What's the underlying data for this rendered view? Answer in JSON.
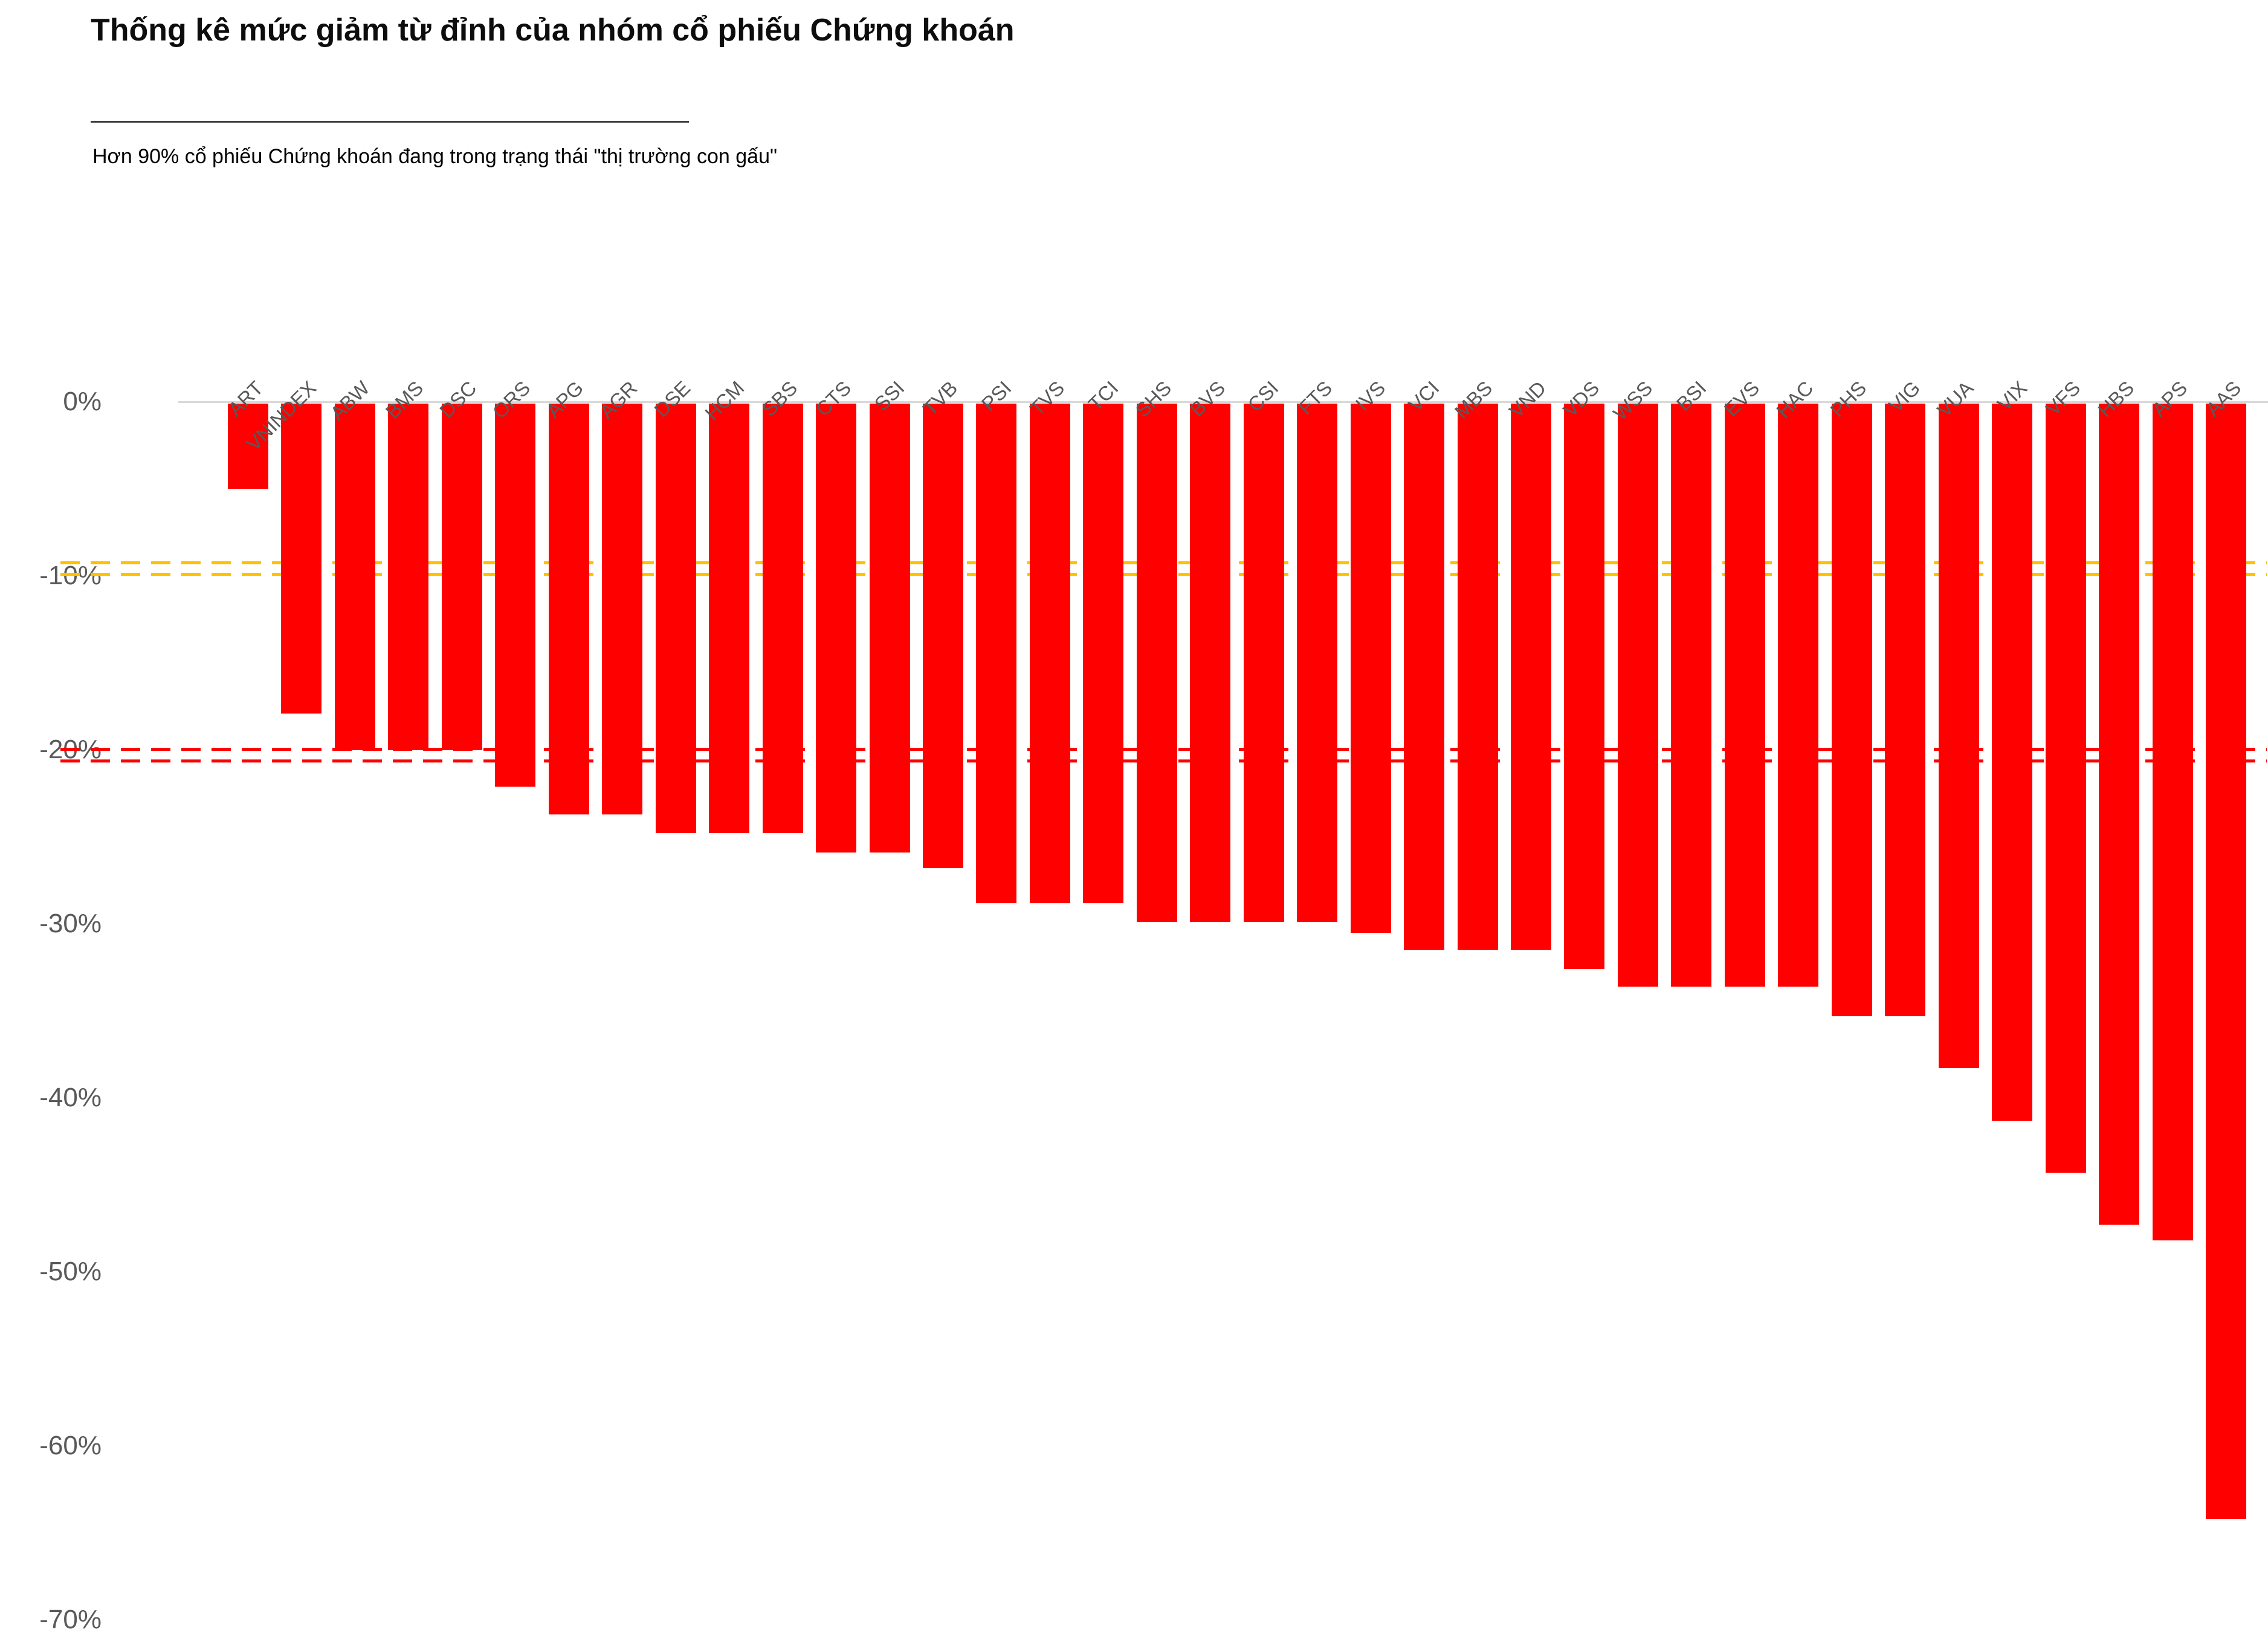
{
  "header": {
    "title": "Thống kê mức giảm từ đỉnh của nhóm cổ phiếu Chứng khoán",
    "subtitle": "Hơn 90% cổ phiếu Chứng khoán đang trong trạng thái \"thị trường con gấu\""
  },
  "colors": {
    "bar": "#ff0000",
    "correction_line": "#ffc000",
    "bear_line": "#ff0000",
    "axis_line": "#d9d9d9",
    "tick_text": "#595959",
    "title_text": "#0d0d0d"
  },
  "chart_data": {
    "type": "bar",
    "title": "Thống kê mức giảm từ đỉnh của nhóm cổ phiếu Chứng khoán",
    "subtitle": "Hơn 90% cổ phiếu Chứng khoán đang trong trạng thái \"thị trường con gấu\"",
    "xlabel": "",
    "ylabel": "",
    "ylim": [
      -70,
      0
    ],
    "grid": false,
    "legend_position": "none",
    "bar_color": "#ff0000",
    "categories": [
      "ART",
      "VNINDEX",
      "ABW",
      "BMS",
      "DSC",
      "ORS",
      "APG",
      "AGR",
      "DSE",
      "HCM",
      "SBS",
      "CTS",
      "SSI",
      "TVB",
      "PSI",
      "TVS",
      "TCI",
      "SHS",
      "BVS",
      "CSI",
      "FTS",
      "IVS",
      "VCI",
      "MBS",
      "VND",
      "VDS",
      "WSS",
      "BSI",
      "EVS",
      "HAC",
      "PHS",
      "VIG",
      "VUA",
      "VIX",
      "VFS",
      "HBS",
      "APS",
      "AAS"
    ],
    "values": [
      -4.9,
      -17.8,
      -19.9,
      -19.9,
      -19.9,
      -22,
      -23.6,
      -23.6,
      -24.7,
      -24.7,
      -24.7,
      -25.8,
      -25.8,
      -26.7,
      -28.7,
      -28.7,
      -28.7,
      -29.8,
      -29.8,
      -29.8,
      -29.8,
      -30.4,
      -31.4,
      -31.4,
      -31.4,
      -32.5,
      -33.5,
      -33.5,
      -33.5,
      -33.5,
      -35.2,
      -35.2,
      -38.2,
      -41.2,
      -44.2,
      -47.2,
      -48.1,
      -64.1
    ],
    "yticks": [
      {
        "label": "0%",
        "value": 0
      },
      {
        "label": "-10%",
        "value": -10
      },
      {
        "label": "-20%",
        "value": -20
      },
      {
        "label": "-30%",
        "value": -30
      },
      {
        "label": "-40%",
        "value": -40
      },
      {
        "label": "-50%",
        "value": -50
      },
      {
        "label": "-60%",
        "value": -60
      },
      {
        "label": "-70%",
        "value": -70
      }
    ],
    "reference_lines": [
      {
        "name": "correction-threshold",
        "value": -9.6,
        "color": "#ffc000",
        "style": "double-dashed"
      },
      {
        "name": "bear-market-threshold",
        "value": -20.3,
        "color": "#ff0000",
        "style": "double-dashed"
      }
    ]
  }
}
